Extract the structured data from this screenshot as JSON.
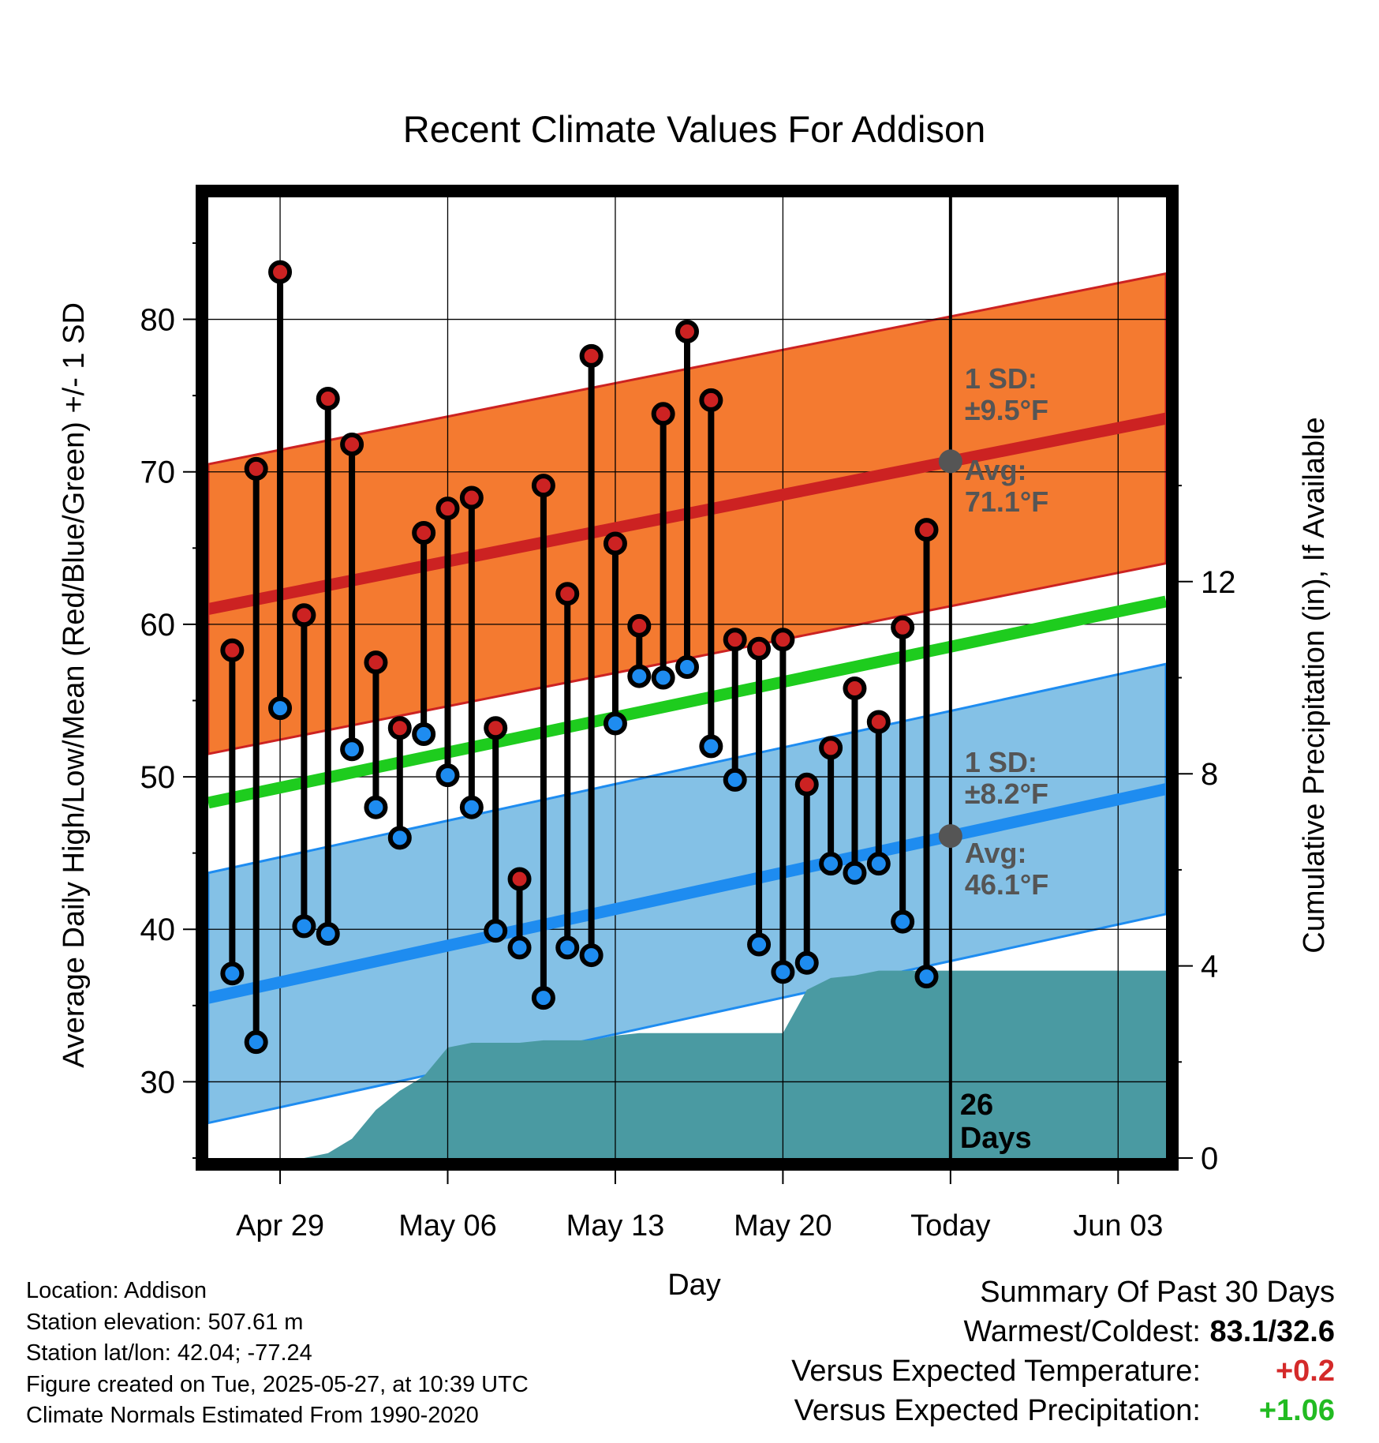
{
  "chart_data": {
    "type": "line",
    "title": "Recent Climate Values For Addison",
    "xlabel": "Day",
    "ylabel": "Average Daily High/Low/Mean (Red/Blue/Green) +/- 1 SD",
    "y2label": "Cumulative Precipitation (in), If Available",
    "ylim": [
      25,
      88
    ],
    "y2lim": [
      0,
      20
    ],
    "y_ticks": [
      "30",
      "40",
      "50",
      "60",
      "70",
      "80"
    ],
    "y2_ticks": [
      "0",
      "4",
      "8",
      "12"
    ],
    "x_tick_labels": [
      "Apr 29",
      "May 06",
      "May 13",
      "May 20",
      "Today",
      "Jun 03"
    ],
    "x_range_days": [
      0,
      40
    ],
    "x_tick_days": [
      3,
      10,
      17,
      24,
      31,
      38
    ],
    "today_day": 31,
    "grid": true,
    "normals": {
      "high_mean": [
        61.0,
        73.5
      ],
      "high_sd": 9.5,
      "low_mean": [
        35.5,
        49.2
      ],
      "low_sd": 8.2,
      "mean": [
        48.3,
        61.5
      ]
    },
    "daily": {
      "days": [
        1,
        2,
        3,
        4,
        5,
        6,
        7,
        8,
        9,
        10,
        11,
        12,
        13,
        14,
        15,
        16,
        17,
        18,
        19,
        20,
        21,
        22,
        23,
        24,
        25,
        26,
        27,
        28,
        29,
        30
      ],
      "highs": [
        58.3,
        70.2,
        83.1,
        60.6,
        74.8,
        71.8,
        57.5,
        53.2,
        66.0,
        67.6,
        68.3,
        53.2,
        43.3,
        69.1,
        62.0,
        77.6,
        65.3,
        59.9,
        73.8,
        79.2,
        74.7,
        59.0,
        58.4,
        59.0,
        49.5,
        51.9,
        55.8,
        53.6,
        59.8,
        66.2
      ],
      "lows": [
        37.1,
        32.6,
        54.5,
        40.2,
        39.7,
        51.8,
        48.0,
        46.0,
        52.8,
        50.1,
        48.0,
        39.9,
        38.8,
        35.5,
        38.8,
        38.3,
        53.5,
        56.6,
        56.5,
        57.2,
        52.0,
        49.8,
        39.0,
        37.2,
        37.8,
        44.3,
        43.7,
        44.3,
        40.5,
        36.9
      ]
    },
    "precip": {
      "days": [
        0,
        4,
        5,
        6,
        7,
        8,
        9,
        10,
        11,
        12,
        13,
        14,
        15,
        16,
        17,
        18,
        19,
        20,
        21,
        22,
        23,
        24,
        25,
        26,
        27,
        28,
        29,
        30,
        31,
        40
      ],
      "values": [
        0,
        0,
        0.1,
        0.4,
        1.0,
        1.4,
        1.7,
        2.3,
        2.4,
        2.4,
        2.4,
        2.45,
        2.45,
        2.45,
        2.55,
        2.6,
        2.6,
        2.6,
        2.6,
        2.6,
        2.6,
        2.6,
        3.5,
        3.75,
        3.8,
        3.9,
        3.9,
        3.9,
        3.9,
        3.9
      ]
    },
    "annotations": {
      "high_sd_label": "1 SD:",
      "high_sd_value": "±9.5°F",
      "high_avg_label": "Avg:",
      "high_avg_value": "71.1°F",
      "low_sd_label": "1 SD:",
      "low_sd_value": "±8.2°F",
      "low_avg_label": "Avg:",
      "low_avg_value": "46.1°F",
      "days_count": "26",
      "days_word": "Days"
    },
    "colors": {
      "high_band": "#f47a30",
      "high_line": "#cc2222",
      "low_band": "#84c1e6",
      "low_line": "#1e8cf0",
      "mean_line": "#1ecc1e",
      "precip_fill": "#4a9aa2",
      "high_point": "#cc2222",
      "low_point": "#1e8cf0",
      "avg_marker": "#555555"
    }
  },
  "footer": {
    "location": "Location: Addison",
    "elevation": "Station elevation: 507.61 m",
    "latlon": "Station lat/lon: 42.04; -77.24",
    "created": "Figure created on Tue, 2025-05-27, at 10:39 UTC",
    "normals": "Climate Normals Estimated From 1990-2020"
  },
  "summary": {
    "title": "Summary Of Past 30 Days",
    "warmest_label": "Warmest/Coldest:",
    "warmest_value": "83.1/32.6",
    "temp_label": "Versus Expected Temperature:",
    "temp_value": "+0.2",
    "precip_label": "Versus Expected Precipitation:",
    "precip_value": "+1.06"
  }
}
